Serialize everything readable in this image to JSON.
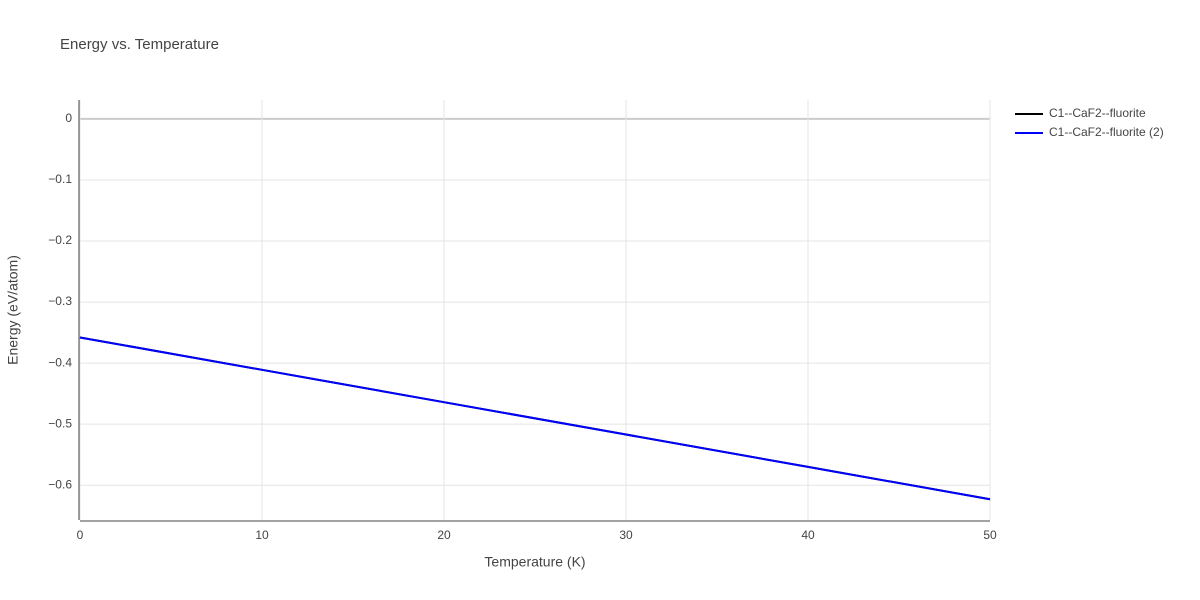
{
  "chart_data": {
    "type": "line",
    "title": "Energy vs. Temperature",
    "x_label": "Temperature (K)",
    "y_label": "Energy (eV/atom)",
    "x": [
      0,
      10,
      20,
      30,
      40,
      50
    ],
    "series": [
      {
        "name": "C1--CaF2--fluorite",
        "color": "#000000",
        "values": [
          -0.358,
          -0.411,
          -0.464,
          -0.517,
          -0.57,
          -0.623
        ]
      },
      {
        "name": "C1--CaF2--fluorite (2)",
        "color": "#0000ff",
        "values": [
          -0.358,
          -0.411,
          -0.464,
          -0.517,
          -0.57,
          -0.623
        ]
      }
    ],
    "xlim": [
      0,
      50
    ],
    "xticks": [
      0,
      10,
      20,
      30,
      40,
      50
    ],
    "ylim": [
      -0.657,
      0.031
    ],
    "yticks": [
      0,
      {
        "value": -0.1,
        "label": "−0.1"
      },
      {
        "value": -0.2,
        "label": "−0.2"
      },
      {
        "value": -0.3,
        "label": "−0.3"
      },
      {
        "value": -0.4,
        "label": "−0.4"
      },
      {
        "value": -0.5,
        "label": "−0.5"
      },
      {
        "value": -0.6,
        "label": "−0.6"
      }
    ],
    "grid": true
  }
}
